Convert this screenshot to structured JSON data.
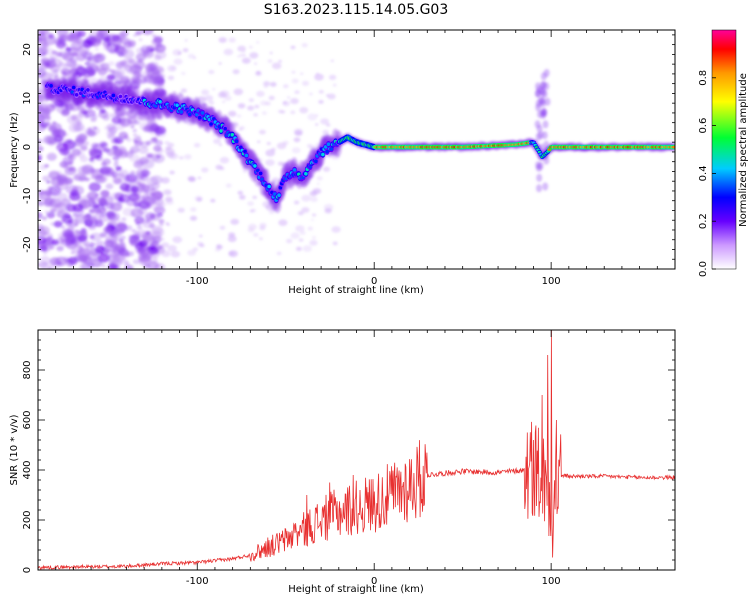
{
  "title": "S163.2023.115.14.05.G03",
  "colors": {
    "snr_line": "#e83030",
    "spec_blob": "#8a2be2"
  },
  "chart_data": [
    {
      "type": "heatmap",
      "name": "spectrogram",
      "xlabel": "Height of straight line (km)",
      "ylabel": "Frequency (Hz)",
      "xlim": [
        -190,
        170
      ],
      "ylim": [
        -25,
        24
      ],
      "x_ticks": [
        -100,
        0,
        100
      ],
      "y_ticks": [
        -20,
        -10,
        0,
        10,
        20
      ],
      "ridge": {
        "x": [
          -180,
          -160,
          -140,
          -125,
          -110,
          -100,
          -90,
          -80,
          -70,
          -60,
          -55,
          -50,
          -45,
          -40,
          -35,
          -30,
          -25,
          -20,
          -15,
          -10,
          -5,
          0,
          20,
          50,
          80,
          90,
          95,
          98,
          100,
          120,
          150,
          170
        ],
        "y": [
          12,
          11,
          10,
          9,
          8,
          7,
          5,
          2,
          -3,
          -8,
          -11,
          -6,
          -5,
          -6,
          -3,
          -1,
          0,
          1,
          2,
          1,
          0.5,
          0,
          0,
          0,
          0.5,
          1,
          -2,
          -1,
          0,
          0,
          0,
          0
        ]
      },
      "colorbar": {
        "label": "Normalized spectral amplitude",
        "range": [
          0,
          1
        ],
        "ticks": [
          "0.0",
          "0.2",
          "0.4",
          "0.6",
          "0.8"
        ],
        "stops": [
          {
            "offset": 0.0,
            "color": "#ffffff"
          },
          {
            "offset": 0.1,
            "color": "#cc99ff"
          },
          {
            "offset": 0.2,
            "color": "#6600ff"
          },
          {
            "offset": 0.3,
            "color": "#0000ff"
          },
          {
            "offset": 0.42,
            "color": "#00ccff"
          },
          {
            "offset": 0.55,
            "color": "#00ff33"
          },
          {
            "offset": 0.7,
            "color": "#ffff00"
          },
          {
            "offset": 0.82,
            "color": "#ff9900"
          },
          {
            "offset": 0.92,
            "color": "#ff0000"
          },
          {
            "offset": 1.0,
            "color": "#ff0099"
          }
        ]
      }
    },
    {
      "type": "line",
      "name": "snr",
      "xlabel": "Height of straight line (km)",
      "ylabel": "SNR (10 * v/v)",
      "xlim": [
        -190,
        170
      ],
      "ylim": [
        0,
        960
      ],
      "x_ticks": [
        -100,
        0,
        100
      ],
      "y_ticks": [
        0,
        200,
        400,
        600,
        800
      ],
      "envelope": {
        "x": [
          -190,
          -140,
          -120,
          -100,
          -80,
          -70,
          -60,
          -50,
          -40,
          -30,
          -20,
          -10,
          0,
          10,
          20,
          30,
          50,
          70,
          85,
          90,
          95,
          98,
          100,
          102,
          105,
          110,
          130,
          150,
          170
        ],
        "y": [
          10,
          15,
          25,
          30,
          45,
          60,
          90,
          120,
          160,
          200,
          230,
          250,
          270,
          300,
          340,
          380,
          395,
          390,
          400,
          420,
          380,
          300,
          350,
          300,
          380,
          375,
          375,
          370,
          370
        ]
      },
      "spikes": {
        "x": [
          -60,
          -45,
          -38,
          -25,
          -12,
          90,
          95,
          98,
          100,
          101,
          103
        ],
        "y": [
          130,
          180,
          300,
          350,
          380,
          520,
          700,
          860,
          960,
          50,
          600
        ]
      }
    }
  ]
}
